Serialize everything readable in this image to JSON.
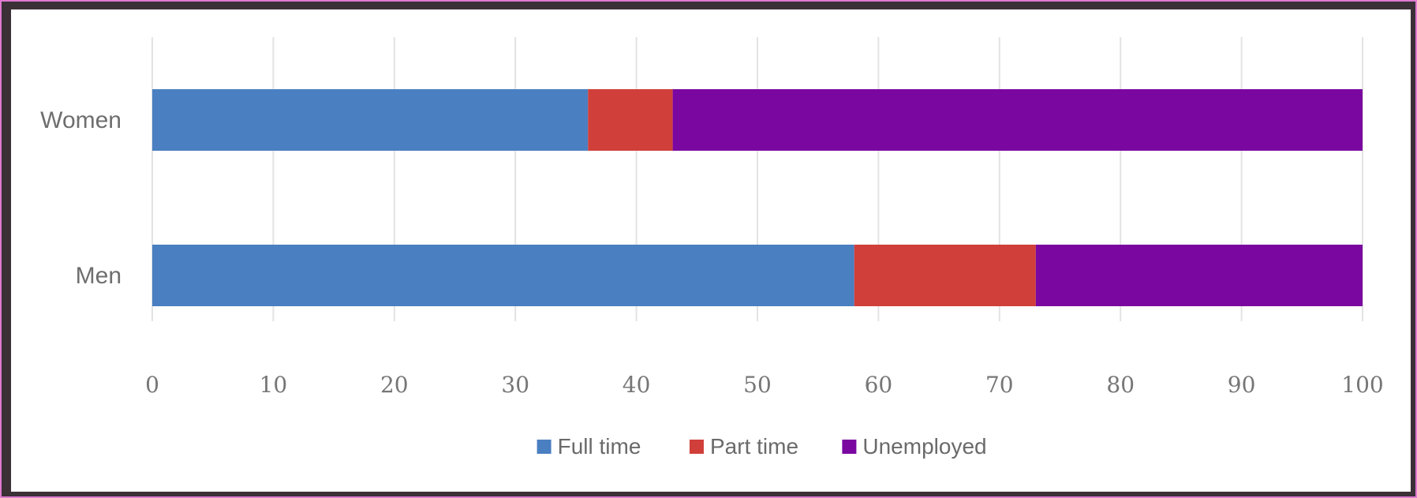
{
  "chart_data": {
    "type": "bar",
    "orientation": "horizontal",
    "stacked": true,
    "title": "",
    "xlabel": "",
    "ylabel": "",
    "categories": [
      "Women",
      "Men"
    ],
    "xlim": [
      0,
      100
    ],
    "xticks": [
      0,
      10,
      20,
      30,
      40,
      50,
      60,
      70,
      80,
      90,
      100
    ],
    "grid": true,
    "legend_position": "bottom",
    "series": [
      {
        "name": "Full time",
        "color": "#4a7fc1",
        "values": [
          36,
          58
        ]
      },
      {
        "name": "Part time",
        "color": "#d13f3a",
        "values": [
          7,
          15
        ]
      },
      {
        "name": "Unemployed",
        "color": "#7a07a0",
        "values": [
          57,
          27
        ]
      }
    ]
  }
}
